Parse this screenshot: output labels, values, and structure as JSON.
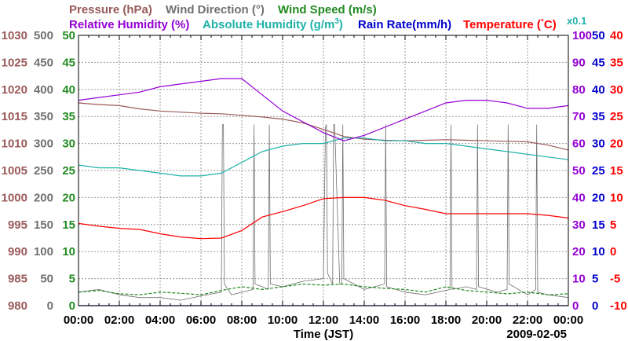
{
  "chart_data": {
    "type": "line",
    "xlabel": "Time (JST)",
    "date_label": "2009-02-05",
    "x_ticks": [
      "00:00",
      "02:00",
      "04:00",
      "06:00",
      "08:00",
      "10:00",
      "12:00",
      "14:00",
      "16:00",
      "18:00",
      "20:00",
      "22:00",
      "00:00"
    ],
    "legend": {
      "pressure": "Pressure (hPa)",
      "wind_direction": "Wind Direction (°)",
      "wind_speed": "Wind Speed (m/s)",
      "relative_humidity": "Relative Humidity (%)",
      "absolute_humidity": "Absolute Humidity (g/m",
      "absolute_humidity_sup": "3",
      "absolute_humidity_close": ")",
      "rain_rate": "Rain Rate(mm/h)",
      "temperature": "Temperature (",
      "temperature_deg": "°",
      "temperature_unit": "C)",
      "rain_scale_note": "x0.1"
    },
    "axes": {
      "pressure": {
        "min": 980,
        "max": 1030,
        "ticks": [
          "1030",
          "1025",
          "1020",
          "1015",
          "1010",
          "1005",
          "1000",
          "995",
          "990",
          "985",
          "980"
        ]
      },
      "wind_direction": {
        "min": 0,
        "max": 500,
        "ticks": [
          "500",
          "450",
          "400",
          "350",
          "300",
          "250",
          "200",
          "150",
          "100",
          "50",
          "0"
        ]
      },
      "wind_speed": {
        "min": 0,
        "max": 50,
        "ticks": [
          "50",
          "45",
          "40",
          "35",
          "30",
          "25",
          "20",
          "15",
          "10",
          "5",
          "0"
        ]
      },
      "relative_humidity": {
        "min": 0,
        "max": 100,
        "ticks": [
          "100",
          "90",
          "80",
          "70",
          "60",
          "50",
          "40",
          "30",
          "20",
          "10",
          "0"
        ]
      },
      "rain_rate": {
        "min": 0,
        "max": 50,
        "ticks": [
          "50",
          "45",
          "40",
          "35",
          "30",
          "25",
          "20",
          "15",
          "10",
          "5",
          "0"
        ]
      },
      "temperature": {
        "min": -10,
        "max": 40,
        "ticks": [
          "40",
          "35",
          "30",
          "25",
          "20",
          "15",
          "10",
          "5",
          "0",
          "-5",
          "-10"
        ]
      }
    },
    "colors": {
      "pressure": "#9a5a5a",
      "wind_direction": "#707070",
      "wind_speed": "#228b22",
      "relative_humidity": "#9400d3",
      "absolute_humidity": "#20b2aa",
      "rain_rate": "#0000cd",
      "temperature": "#ff0000"
    },
    "grid": true,
    "series": [
      {
        "key": "pressure",
        "x": [
          0,
          1,
          2,
          3,
          4,
          5,
          6,
          7,
          8,
          9,
          10,
          11,
          12,
          13,
          14,
          15,
          16,
          17,
          18,
          19,
          20,
          21,
          22,
          23,
          24
        ],
        "values": [
          1017.5,
          1017.2,
          1017.0,
          1016.4,
          1016.0,
          1015.8,
          1015.6,
          1015.5,
          1015.2,
          1014.9,
          1014.5,
          1013.8,
          1012.6,
          1011.3,
          1010.8,
          1010.6,
          1010.5,
          1010.6,
          1010.7,
          1010.6,
          1010.5,
          1010.4,
          1010.3,
          1009.7,
          1008.8
        ]
      },
      {
        "key": "relative_humidity",
        "x": [
          0,
          1,
          2,
          3,
          4,
          5,
          6,
          7,
          8,
          9,
          10,
          11,
          12,
          13,
          14,
          15,
          16,
          17,
          18,
          19,
          20,
          21,
          22,
          23,
          24
        ],
        "values": [
          76,
          77,
          78,
          79,
          81,
          82,
          83,
          84,
          84,
          78,
          72,
          68,
          64,
          61,
          63,
          66,
          69,
          72,
          75,
          76,
          76,
          75,
          73,
          73,
          74
        ]
      },
      {
        "key": "absolute_humidity",
        "x": [
          0,
          1,
          2,
          3,
          4,
          5,
          6,
          7,
          8,
          9,
          10,
          11,
          12,
          13,
          14,
          15,
          16,
          17,
          18,
          19,
          20,
          21,
          22,
          23,
          24
        ],
        "values": [
          5.2,
          5.1,
          5.1,
          5.0,
          4.9,
          4.8,
          4.8,
          4.9,
          5.3,
          5.7,
          5.9,
          6.0,
          6.0,
          6.2,
          6.2,
          6.1,
          6.1,
          6.0,
          6.0,
          5.9,
          5.8,
          5.7,
          5.6,
          5.5,
          5.4
        ]
      },
      {
        "key": "temperature",
        "x": [
          0,
          1,
          2,
          3,
          4,
          5,
          6,
          7,
          8,
          9,
          10,
          11,
          12,
          13,
          14,
          15,
          16,
          17,
          18,
          19,
          20,
          21,
          22,
          23,
          24
        ],
        "values": [
          5.2,
          4.7,
          4.3,
          4.1,
          3.3,
          2.7,
          2.4,
          2.5,
          3.9,
          6.4,
          7.4,
          8.5,
          9.8,
          10.0,
          10.0,
          9.5,
          8.5,
          7.8,
          7.0,
          7.0,
          7.0,
          7.0,
          7.0,
          6.7,
          6.2
        ]
      },
      {
        "key": "wind_direction",
        "x": [
          0,
          1,
          2,
          3,
          4,
          5,
          6,
          7,
          7.05,
          7.1,
          7.15,
          7.5,
          8.55,
          8.6,
          8.65,
          9.0,
          9.3,
          9.35,
          9.4,
          10,
          11,
          12.0,
          12.1,
          12.15,
          12.2,
          12.45,
          12.5,
          12.55,
          12.8,
          12.9,
          12.95,
          13.0,
          14,
          15.0,
          15.05,
          15.1,
          16,
          17,
          18.2,
          18.25,
          18.3,
          19.0,
          19.5,
          19.55,
          19.6,
          20.5,
          21.0,
          21.05,
          21.1,
          22.0,
          22.4,
          22.45,
          22.5,
          23,
          24
        ],
        "values": [
          25,
          30,
          20,
          15,
          15,
          10,
          18,
          25,
          335,
          335,
          40,
          20,
          30,
          335,
          40,
          35,
          30,
          335,
          40,
          35,
          45,
          50,
          330,
          335,
          60,
          40,
          335,
          335,
          40,
          40,
          335,
          50,
          30,
          40,
          335,
          35,
          25,
          20,
          30,
          335,
          30,
          35,
          30,
          335,
          35,
          25,
          30,
          335,
          40,
          20,
          30,
          335,
          25,
          20,
          15
        ]
      },
      {
        "key": "wind_speed",
        "x": [
          0,
          1,
          2,
          3,
          4,
          5,
          6,
          7,
          8,
          9,
          10,
          11,
          12,
          13,
          14,
          15,
          16,
          17,
          18,
          19,
          20,
          21,
          22,
          23,
          24
        ],
        "values": [
          2.5,
          2.8,
          2.2,
          2.0,
          2.5,
          2.3,
          2.0,
          2.8,
          3.5,
          3.0,
          3.5,
          4.0,
          3.8,
          4.0,
          3.5,
          3.2,
          3.0,
          2.5,
          3.5,
          2.8,
          2.5,
          2.2,
          2.5,
          2.0,
          2.2
        ]
      },
      {
        "key": "rain_rate",
        "x": [
          0,
          24
        ],
        "values": [
          0,
          0
        ]
      }
    ]
  }
}
